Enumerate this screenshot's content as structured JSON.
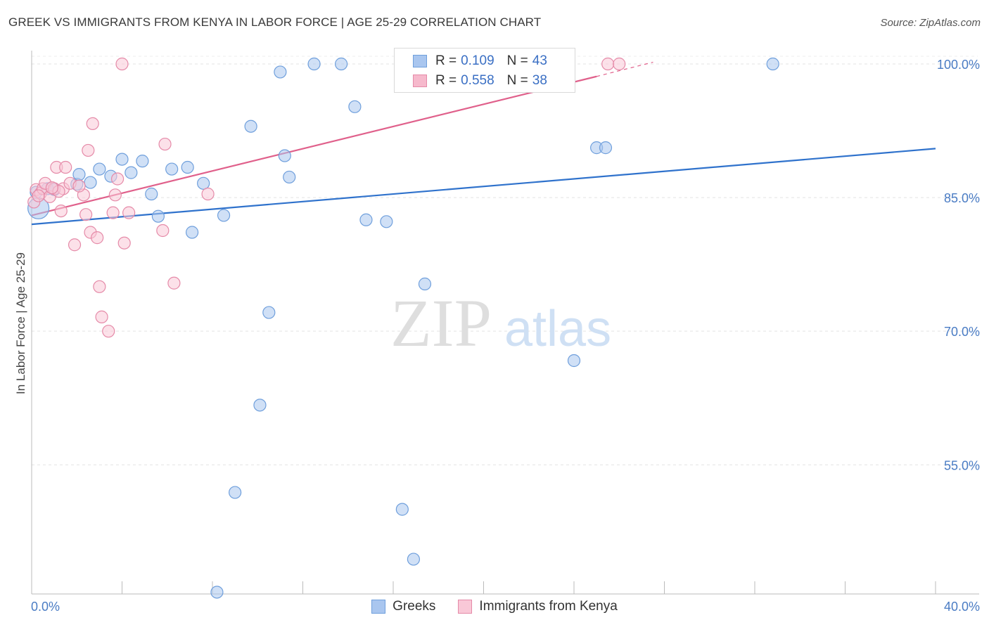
{
  "header": {
    "title": "GREEK VS IMMIGRANTS FROM KENYA IN LABOR FORCE | AGE 25-29 CORRELATION CHART",
    "source": "Source: ZipAtlas.com"
  },
  "watermark": {
    "zip": "ZIP",
    "atlas": "atlas"
  },
  "legend": {
    "rows": [
      {
        "r_label": "R =",
        "r_value": "0.109",
        "n_label": "N =",
        "n_value": "43",
        "color": "#a9c6ef",
        "border": "#6f9fdc"
      },
      {
        "r_label": "R =",
        "r_value": "0.558",
        "n_label": "N =",
        "n_value": "38",
        "color": "#f6b9cc",
        "border": "#e58aa8"
      }
    ]
  },
  "bottom_legend": [
    {
      "label": "Greeks",
      "color": "#a9c6ef",
      "border": "#6f9fdc"
    },
    {
      "label": "Immigrants from Kenya",
      "color": "#f9c8d7",
      "border": "#e58aa8"
    }
  ],
  "chart_data": {
    "type": "scatter",
    "title": "GREEK VS IMMIGRANTS FROM KENYA IN LABOR FORCE | AGE 25-29 CORRELATION CHART",
    "xlabel": "",
    "ylabel": "In Labor Force | Age 25-29",
    "xlim": [
      0,
      40
    ],
    "ylim": [
      40.5,
      101.5
    ],
    "x_tick_labels": [
      "0.0%",
      "40.0%"
    ],
    "y_tick_values": [
      100,
      85,
      70,
      55
    ],
    "y_tick_labels": [
      "100.0%",
      "85.0%",
      "70.0%",
      "55.0%"
    ],
    "grid": true,
    "series": [
      {
        "name": "Greeks",
        "color": "#a9c6ef",
        "stroke": "#6f9fdc",
        "line_color": "#2f72cc",
        "trend": {
          "x0": 0,
          "y0": 82.0,
          "x1": 40,
          "y1": 90.5
        },
        "points": [
          [
            0.3,
            83.8
          ],
          [
            0.7,
            86.0
          ],
          [
            1.0,
            85.9
          ],
          [
            2.0,
            86.5
          ],
          [
            2.1,
            87.6
          ],
          [
            2.6,
            86.7
          ],
          [
            3.0,
            88.2
          ],
          [
            3.5,
            87.4
          ],
          [
            4.0,
            89.3
          ],
          [
            4.4,
            87.8
          ],
          [
            4.9,
            89.1
          ],
          [
            5.3,
            85.4
          ],
          [
            5.6,
            82.9
          ],
          [
            6.2,
            88.2
          ],
          [
            6.9,
            88.4
          ],
          [
            7.1,
            81.1
          ],
          [
            7.6,
            86.6
          ],
          [
            8.2,
            40.7
          ],
          [
            8.5,
            83.0
          ],
          [
            9.0,
            51.9
          ],
          [
            9.7,
            93.0
          ],
          [
            10.1,
            61.7
          ],
          [
            10.5,
            72.1
          ],
          [
            11.0,
            99.1
          ],
          [
            11.2,
            89.7
          ],
          [
            11.4,
            87.3
          ],
          [
            12.5,
            100.0
          ],
          [
            13.7,
            100.0
          ],
          [
            14.3,
            95.2
          ],
          [
            14.8,
            82.5
          ],
          [
            15.7,
            82.3
          ],
          [
            16.4,
            50.0
          ],
          [
            16.9,
            44.4
          ],
          [
            17.4,
            75.3
          ],
          [
            17.7,
            100.0
          ],
          [
            19.1,
            100.0
          ],
          [
            21.2,
            100.0
          ],
          [
            23.4,
            100.0
          ],
          [
            24.0,
            66.7
          ],
          [
            25.0,
            90.6
          ],
          [
            25.4,
            90.6
          ],
          [
            32.8,
            100.0
          ],
          [
            0.2,
            85.6
          ]
        ]
      },
      {
        "name": "Immigrants from Kenya",
        "color": "#f9c8d7",
        "stroke": "#e58aa8",
        "line_color": "#e0608b",
        "trend": {
          "x0": 0,
          "y0": 83.0,
          "x1": 25.0,
          "y1": 98.6
        },
        "trend_dashed": {
          "x0": 25.0,
          "y0": 98.6,
          "x1": 27.5,
          "y1": 100.2
        },
        "points": [
          [
            0.1,
            84.5
          ],
          [
            0.2,
            85.9
          ],
          [
            0.4,
            85.5
          ],
          [
            0.5,
            86.0
          ],
          [
            0.6,
            86.6
          ],
          [
            0.8,
            85.1
          ],
          [
            1.0,
            86.0
          ],
          [
            1.1,
            88.4
          ],
          [
            1.3,
            83.5
          ],
          [
            1.4,
            86.0
          ],
          [
            1.5,
            88.4
          ],
          [
            1.7,
            86.6
          ],
          [
            1.9,
            79.7
          ],
          [
            2.3,
            85.3
          ],
          [
            2.4,
            83.1
          ],
          [
            2.5,
            90.3
          ],
          [
            2.6,
            81.1
          ],
          [
            2.7,
            93.3
          ],
          [
            2.9,
            80.5
          ],
          [
            3.0,
            75.0
          ],
          [
            3.1,
            71.6
          ],
          [
            3.4,
            70.0
          ],
          [
            3.6,
            83.3
          ],
          [
            3.7,
            85.3
          ],
          [
            3.8,
            87.1
          ],
          [
            4.0,
            100.0
          ],
          [
            4.1,
            79.9
          ],
          [
            4.3,
            83.3
          ],
          [
            5.8,
            81.3
          ],
          [
            5.9,
            91.0
          ],
          [
            6.3,
            75.4
          ],
          [
            7.8,
            85.4
          ],
          [
            25.5,
            100.0
          ],
          [
            26.0,
            100.0
          ],
          [
            1.2,
            85.7
          ],
          [
            0.9,
            86.1
          ],
          [
            2.1,
            86.3
          ],
          [
            0.3,
            85.2
          ]
        ]
      }
    ]
  }
}
